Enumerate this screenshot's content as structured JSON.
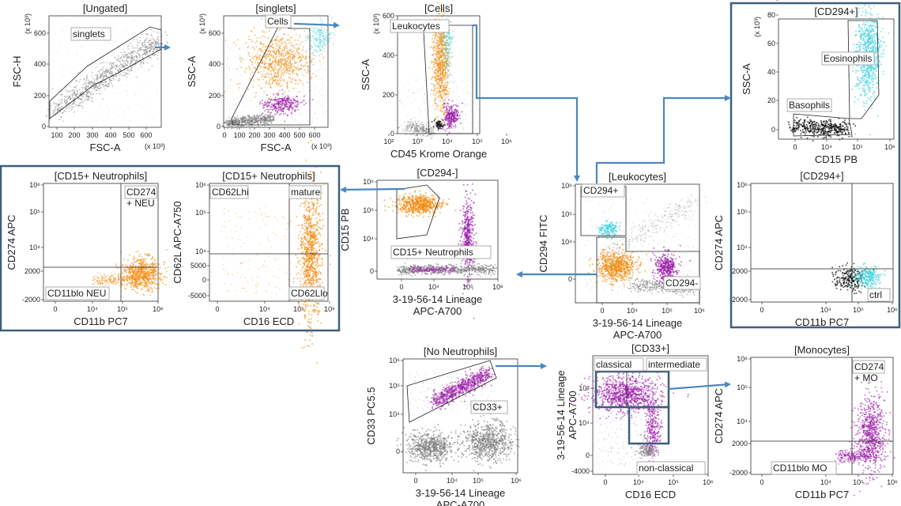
{
  "colors": {
    "orange": "#f08c10",
    "cyan": "#3fd3e0",
    "purple": "#9a1aa8",
    "gray": "#7a7a7a",
    "black": "#111111",
    "arrow": "#4a87c0",
    "group_box": "#3d5f7e"
  },
  "panels": [
    {
      "id": "ungated",
      "title": "[Ungated]",
      "xlabel": "FSC-A",
      "ylabel": "FSC-H",
      "xexp": "(x 10³)",
      "yexp": "(x 10³)",
      "xticks": [
        "100",
        "200",
        "300",
        "400",
        "500",
        "600"
      ],
      "yticks": [
        "0",
        "200",
        "400",
        "600"
      ],
      "gates": [
        "singlets"
      ]
    },
    {
      "id": "singlets",
      "title": "[singlets]",
      "xlabel": "FSC-A",
      "ylabel": "SSC-A",
      "xexp": "(x 10³)",
      "yexp": "(x 10³)",
      "xticks": [
        "0",
        "100",
        "200",
        "300",
        "400",
        "500",
        "600"
      ],
      "yticks": [
        "0",
        "200",
        "400",
        "600"
      ],
      "gates": [
        "Cells"
      ]
    },
    {
      "id": "cells",
      "title": "[Cells]",
      "xlabel": "CD45 Krome Orange",
      "ylabel": "SSC-A",
      "yexp": "(x 10³)",
      "xticks": [
        "10²",
        "10³",
        "10⁴",
        "10⁵",
        "10⁶"
      ],
      "yticks": [
        "0",
        "200",
        "400",
        "600"
      ],
      "gates": [
        "Leukocytes"
      ]
    },
    {
      "id": "cd294pos_a",
      "title": "[CD294+]",
      "xlabel": "CD15 PB",
      "ylabel": "SSC-A",
      "yexp": "(x 10³)",
      "xticks": [
        "0",
        "10⁴",
        "10⁵",
        "10⁶"
      ],
      "yticks": [
        "0",
        "20",
        "40",
        "60",
        "80",
        "100"
      ],
      "gates": [
        "Eosinophils",
        "Basophils"
      ]
    },
    {
      "id": "neu_cd274",
      "title": "[CD15+ Neutrophils]",
      "xlabel": "CD11b PC7",
      "ylabel": "CD274 APC",
      "xticks": [
        "0",
        "10⁴",
        "10⁵",
        "10⁶"
      ],
      "yticks": [
        "10⁶",
        "10⁵",
        "10⁴",
        "2000",
        "-2000"
      ],
      "gates": [
        "CD274\n+ NEU",
        "CD11blo NEU"
      ]
    },
    {
      "id": "neu_cd62l",
      "title": "[CD15+ Neutrophils]",
      "xlabel": "CD16 ECD",
      "ylabel": "CD62L APC-A750",
      "xticks": [
        "0",
        "10⁴",
        "10⁵",
        "10⁶"
      ],
      "yticks": [
        "10⁶",
        "10⁵",
        "10⁴",
        "5000",
        "0",
        "-5000"
      ],
      "gates": [
        "CD62Lhi",
        "mature",
        "CD62Llo"
      ]
    },
    {
      "id": "cd294neg",
      "title": "[CD294-]",
      "xlabel": "3-19-56-14 Lineage\nAPC-A700",
      "ylabel": "CD15 PB",
      "xticks": [
        "0",
        "10⁴",
        "10⁵",
        "10⁶"
      ],
      "yticks": [
        "10⁶",
        "10⁵",
        "10⁴",
        "0"
      ],
      "gates": [
        "CD15+ Neutrophils"
      ]
    },
    {
      "id": "leukocytes",
      "title": "[Leukocytes]",
      "xlabel": "3-19-56-14 Lineage\nAPC-A700",
      "ylabel": "CD294 FITC",
      "xticks": [
        "0",
        "10⁴",
        "10⁵",
        "10⁶"
      ],
      "yticks": [
        "10⁶",
        "10⁵",
        "10⁴",
        "0"
      ],
      "gates": [
        "CD294+",
        "CD294-"
      ]
    },
    {
      "id": "cd294pos_b",
      "title": "[CD294+]",
      "xlabel": "CD11b PC7",
      "ylabel": "CD274 APC",
      "xticks": [
        "0",
        "10⁴",
        "10⁵",
        "10⁶"
      ],
      "yticks": [
        "10⁶",
        "10⁵",
        "10⁴",
        "2000",
        "-2000"
      ],
      "gates": [
        "ctrl"
      ]
    },
    {
      "id": "noneu",
      "title": "[No Neutrophils]",
      "xlabel": "3-19-56-14 Lineage\nAPC-A700",
      "ylabel": "CD33 PC5.5",
      "xticks": [
        "0",
        "10⁴",
        "10⁵",
        "10⁶"
      ],
      "yticks": [
        "10⁶",
        "10⁵",
        "10⁴",
        "0"
      ],
      "gates": [
        "CD33+"
      ]
    },
    {
      "id": "cd33pos",
      "title": "[CD33+]",
      "xlabel": "CD16 ECD",
      "ylabel": "3-19-56-14 Lineage\nAPC-A700",
      "xticks": [
        "0",
        "10⁴",
        "10⁵",
        "10⁶"
      ],
      "yticks": [
        "10⁵",
        "10⁴",
        "0",
        "-4000"
      ],
      "gates": [
        "classical",
        "intermediate",
        "non-classical"
      ]
    },
    {
      "id": "monocytes",
      "title": "[Monocytes]",
      "xlabel": "CD11b PC7",
      "ylabel": "CD274 APC",
      "xticks": [
        "0",
        "10⁴",
        "10⁵",
        "10⁶"
      ],
      "yticks": [
        "10⁶",
        "10⁵",
        "10⁴",
        "2000",
        "-2000"
      ],
      "gates": [
        "CD274\n+ MO",
        "CD11blo MO"
      ]
    }
  ]
}
